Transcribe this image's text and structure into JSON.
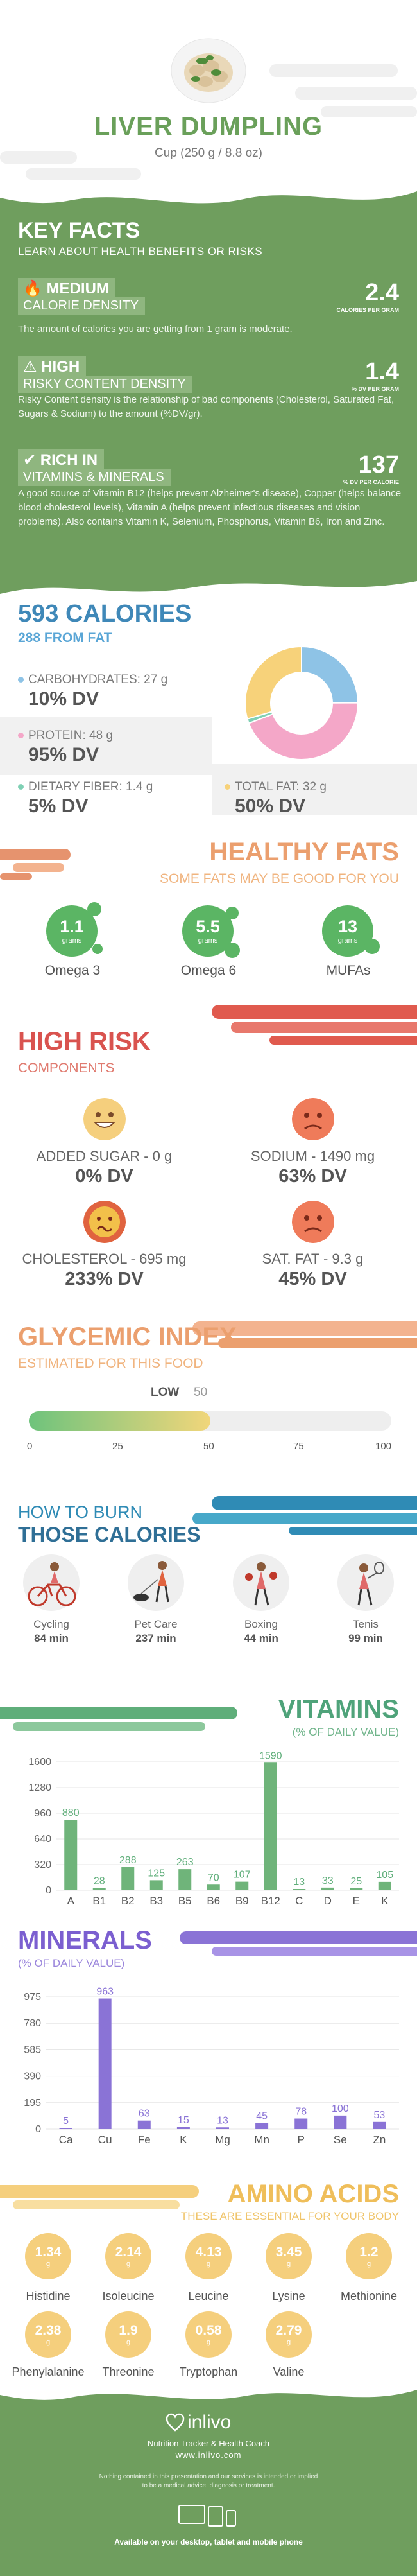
{
  "header": {
    "title": "LIVER DUMPLING",
    "serving": "Cup (250 g / 8.8 oz)"
  },
  "key_facts": {
    "title": "KEY FACTS",
    "subtitle": "LEARN ABOUT HEALTH BENEFITS OR RISKS",
    "items": [
      {
        "level": "MEDIUM",
        "name": "CALORIE DENSITY",
        "value": "2.4",
        "unit": "CALORIES PER GRAM",
        "desc": "The amount of calories you are getting from 1 gram is moderate.",
        "icon": "flame-icon"
      },
      {
        "level": "HIGH",
        "name": "RISKY CONTENT DENSITY",
        "value": "1.4",
        "unit": "% DV PER GRAM",
        "desc": "Risky Content density is the relationship of bad components (Cholesterol, Saturated Fat, Sugars & Sodium) to the amount (%DV/gr).",
        "icon": "warning-icon"
      },
      {
        "level": "RICH IN",
        "name": "VITAMINS & MINERALS",
        "value": "137",
        "unit": "% DV PER CALORIE",
        "desc": "A good source of Vitamin B12 (helps prevent Alzheimer's disease), Copper (helps balance blood cholesterol levels), Vitamin A (helps prevent infectious diseases and vision problems). Also contains Vitamin K, Selenium, Phosphorus, Vitamin B6, Iron and Zinc.",
        "icon": "check-icon"
      }
    ]
  },
  "calories": {
    "title": "593 CALORIES",
    "from_fat": "288 FROM FAT",
    "nutrients": [
      {
        "label": "CARBOHYDRATES: 27 g",
        "dv": "10% DV",
        "color": "#8ec3e6"
      },
      {
        "label": "PROTEIN: 48 g",
        "dv": "95% DV",
        "color": "#f4a7c8"
      },
      {
        "label": "DIETARY FIBER: 1.4 g",
        "dv": "5% DV",
        "color": "#7fd0b4"
      },
      {
        "label": "TOTAL FAT: 32 g",
        "dv": "50% DV",
        "color": "#f7d27a"
      }
    ],
    "donut": [
      {
        "name": "carbs",
        "value": 27,
        "color": "#8ec3e6"
      },
      {
        "name": "protein",
        "value": 48,
        "color": "#f4a7c8"
      },
      {
        "name": "fiber",
        "value": 1.4,
        "color": "#7fd0b4"
      },
      {
        "name": "fat",
        "value": 32,
        "color": "#f7d27a"
      }
    ]
  },
  "healthy_fats": {
    "title": "HEALTHY FATS",
    "subtitle": "SOME FATS MAY BE GOOD FOR YOU",
    "unit": "grams",
    "items": [
      {
        "value": "1.1",
        "label": "Omega 3"
      },
      {
        "value": "5.5",
        "label": "Omega 6"
      },
      {
        "value": "13",
        "label": "MUFAs"
      }
    ]
  },
  "high_risk": {
    "title": "HIGH RISK",
    "subtitle": "COMPONENTS",
    "items": [
      {
        "label": "ADDED SUGAR - 0 g",
        "dv": "0% DV",
        "face": "#f5cf7d",
        "icon": "happy-face-icon"
      },
      {
        "label": "SODIUM - 1490 mg",
        "dv": "63% DV",
        "face": "#ef7b5a",
        "icon": "sad-face-icon"
      },
      {
        "label": "CHOLESTEROL - 695 mg",
        "dv": "233% DV",
        "face": "#e0633f",
        "icon": "sick-face-icon"
      },
      {
        "label": "SAT. FAT - 9.3 g",
        "dv": "45% DV",
        "face": "#ef7b5a",
        "icon": "sad-face-icon"
      }
    ]
  },
  "glycemic": {
    "title": "GLYCEMIC INDEX",
    "subtitle": "ESTIMATED FOR THIS FOOD",
    "level": "LOW",
    "value": "50",
    "value_num": 50,
    "ticks": [
      "0",
      "25",
      "50",
      "75",
      "100"
    ]
  },
  "burn": {
    "title1": "HOW TO BURN",
    "title2": "THOSE CALORIES",
    "items": [
      {
        "label": "Cycling",
        "value": "84 min",
        "icon": "cycling-icon"
      },
      {
        "label": "Pet Care",
        "value": "237 min",
        "icon": "pet-care-icon"
      },
      {
        "label": "Boxing",
        "value": "44 min",
        "icon": "boxing-icon"
      },
      {
        "label": "Tenis",
        "value": "99 min",
        "icon": "tennis-icon"
      }
    ]
  },
  "vitamins": {
    "title": "VITAMINS",
    "subtitle": "(% OF DAILY VALUE)"
  },
  "minerals": {
    "title": "MINERALS",
    "subtitle": "(% OF DAILY VALUE)"
  },
  "chart_data": [
    {
      "type": "bar",
      "title": "VITAMINS",
      "subtitle": "(% OF DAILY VALUE)",
      "categories": [
        "A",
        "B1",
        "B2",
        "B3",
        "B5",
        "B6",
        "B9",
        "B12",
        "C",
        "D",
        "E",
        "K"
      ],
      "values": [
        880,
        28,
        288,
        125,
        263,
        70,
        107,
        1590,
        13,
        33,
        25,
        105
      ],
      "value_labels": [
        "880",
        "28",
        "288",
        "125",
        "263",
        "70",
        "107",
        "1590",
        "13",
        "33",
        "25",
        "105"
      ],
      "yticks": [
        "1600",
        "1280",
        "960",
        "640",
        "320",
        "0"
      ],
      "ylim": [
        0,
        1600
      ],
      "color": "#6fb47a"
    },
    {
      "type": "bar",
      "title": "MINERALS",
      "subtitle": "(% OF DAILY VALUE)",
      "categories": [
        "Ca",
        "Cu",
        "Fe",
        "K",
        "Mg",
        "Mn",
        "P",
        "Se",
        "Zn"
      ],
      "values": [
        5,
        963,
        63,
        15,
        13,
        45,
        78,
        100,
        53
      ],
      "value_labels": [
        "5",
        "963",
        "63",
        "15",
        "13",
        "45",
        "78",
        "100",
        "53"
      ],
      "yticks": [
        "975",
        "780",
        "585",
        "390",
        "195",
        "0"
      ],
      "ylim": [
        0,
        975
      ],
      "color": "#8a73d6"
    }
  ],
  "amino": {
    "title": "AMINO ACIDS",
    "subtitle": "THESE ARE ESSENTIAL FOR YOUR BODY",
    "unit": "g",
    "items": [
      {
        "value": "1.34",
        "label": "Histidine"
      },
      {
        "value": "2.14",
        "label": "Isoleucine"
      },
      {
        "value": "4.13",
        "label": "Leucine"
      },
      {
        "value": "3.45",
        "label": "Lysine"
      },
      {
        "value": "1.2",
        "label": "Methionine"
      },
      {
        "value": "2.38",
        "label": "Phenylalanine"
      },
      {
        "value": "1.9",
        "label": "Threonine"
      },
      {
        "value": "0.58",
        "label": "Tryptophan"
      },
      {
        "value": "2.79",
        "label": "Valine"
      }
    ]
  },
  "footer": {
    "brand": "inlivo",
    "tagline": "Nutrition Tracker & Health Coach",
    "site": "www.inlivo.com",
    "disclaimer1": "Nothing contained in this presentation and our services is intended or implied",
    "disclaimer2": "to be a medical advice, diagnosis or treatment.",
    "available": "Available on your desktop, tablet and mobile phone"
  }
}
